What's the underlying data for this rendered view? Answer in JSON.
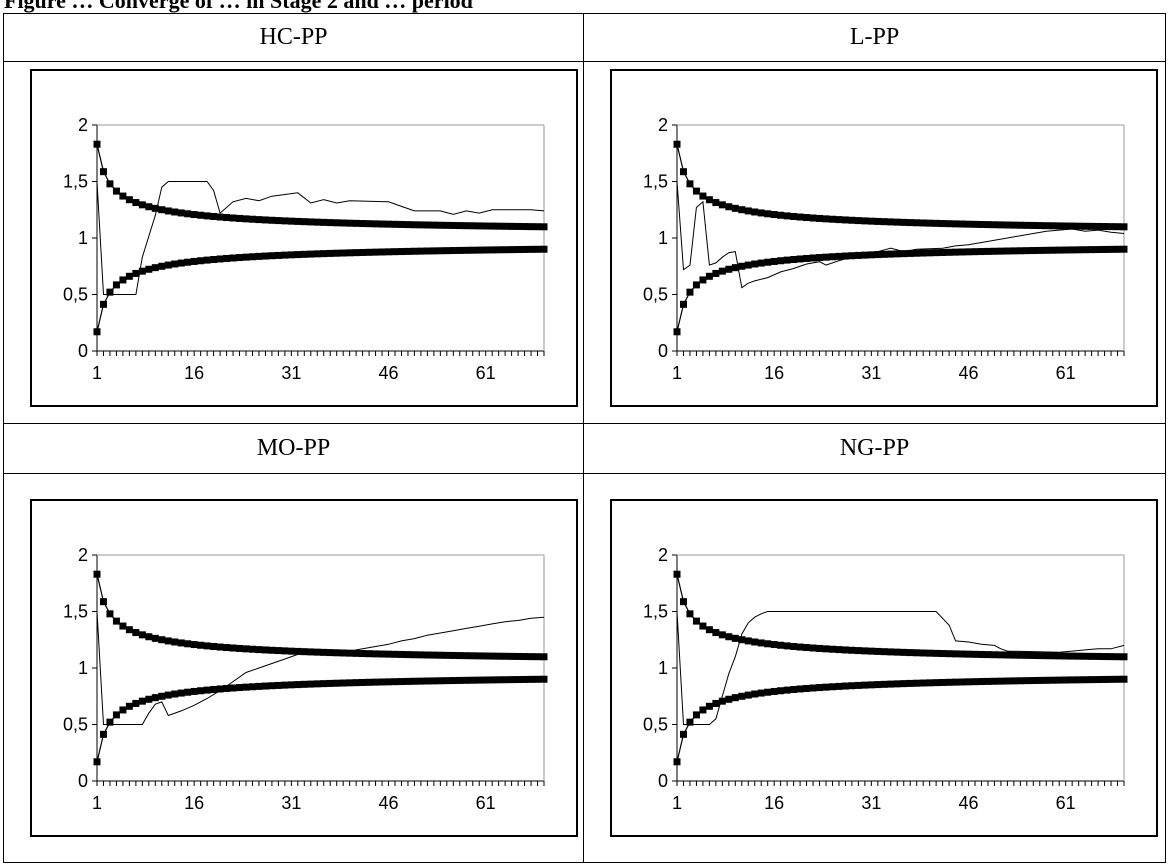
{
  "caption": "Figure … Converge of … in Stage 2 and … period",
  "panels": [
    "HC-PP",
    "L-PP",
    "MO-PP",
    "NG-PP"
  ],
  "chart_data": [
    {
      "type": "line",
      "title": "HC-PP",
      "xlabel": "",
      "ylabel": "",
      "xlim": [
        1,
        70
      ],
      "ylim": [
        0,
        2
      ],
      "x_ticks": [
        1,
        16,
        31,
        46,
        61
      ],
      "y_ticks": [
        "0",
        "0,5",
        "1",
        "1,5",
        "2"
      ],
      "grid": false,
      "series": [
        {
          "marker": "square",
          "shape": "upper_bound",
          "values": "1 + 0.83/sqrt(n) for n = 1..70"
        },
        {
          "marker": "square",
          "shape": "lower_bound",
          "values": "1 - 0.83/sqrt(n) for n = 1..70"
        },
        {
          "marker": "none",
          "points": [
            [
              1,
              1.5
            ],
            [
              2,
              0.5
            ],
            [
              3,
              0.5
            ],
            [
              5,
              0.5
            ],
            [
              7,
              0.5
            ],
            [
              8,
              0.83
            ],
            [
              10,
              1.2
            ],
            [
              11,
              1.45
            ],
            [
              12,
              1.5
            ],
            [
              18,
              1.5
            ],
            [
              19,
              1.42
            ],
            [
              20,
              1.22
            ],
            [
              22,
              1.32
            ],
            [
              24,
              1.35
            ],
            [
              26,
              1.33
            ],
            [
              28,
              1.37
            ],
            [
              32,
              1.4
            ],
            [
              34,
              1.31
            ],
            [
              36,
              1.34
            ],
            [
              38,
              1.31
            ],
            [
              40,
              1.33
            ],
            [
              46,
              1.32
            ],
            [
              48,
              1.28
            ],
            [
              50,
              1.24
            ],
            [
              54,
              1.24
            ],
            [
              56,
              1.21
            ],
            [
              58,
              1.24
            ],
            [
              60,
              1.22
            ],
            [
              62,
              1.25
            ],
            [
              68,
              1.25
            ],
            [
              70,
              1.24
            ]
          ]
        }
      ]
    },
    {
      "type": "line",
      "title": "L-PP",
      "xlabel": "",
      "ylabel": "",
      "xlim": [
        1,
        70
      ],
      "ylim": [
        0,
        2
      ],
      "x_ticks": [
        1,
        16,
        31,
        46,
        61
      ],
      "y_ticks": [
        "0",
        "0,5",
        "1",
        "1,5",
        "2"
      ],
      "grid": false,
      "series": [
        {
          "marker": "square",
          "shape": "upper_bound",
          "values": "1 + 0.83/sqrt(n) for n = 1..70"
        },
        {
          "marker": "square",
          "shape": "lower_bound",
          "values": "1 - 0.83/sqrt(n) for n = 1..70"
        },
        {
          "marker": "none",
          "points": [
            [
              1,
              1.5
            ],
            [
              2,
              0.72
            ],
            [
              3,
              0.76
            ],
            [
              4,
              1.27
            ],
            [
              5,
              1.32
            ],
            [
              6,
              0.76
            ],
            [
              7,
              0.78
            ],
            [
              8,
              0.83
            ],
            [
              9,
              0.87
            ],
            [
              10,
              0.88
            ],
            [
              11,
              0.56
            ],
            [
              12,
              0.6
            ],
            [
              13,
              0.62
            ],
            [
              15,
              0.65
            ],
            [
              17,
              0.7
            ],
            [
              19,
              0.73
            ],
            [
              21,
              0.77
            ],
            [
              23,
              0.79
            ],
            [
              24,
              0.76
            ],
            [
              26,
              0.8
            ],
            [
              28,
              0.83
            ],
            [
              30,
              0.85
            ],
            [
              32,
              0.88
            ],
            [
              34,
              0.91
            ],
            [
              36,
              0.88
            ],
            [
              38,
              0.9
            ],
            [
              42,
              0.91
            ],
            [
              44,
              0.93
            ],
            [
              46,
              0.94
            ],
            [
              48,
              0.96
            ],
            [
              50,
              0.98
            ],
            [
              52,
              1.0
            ],
            [
              54,
              1.02
            ],
            [
              56,
              1.04
            ],
            [
              58,
              1.06
            ],
            [
              60,
              1.07
            ],
            [
              62,
              1.08
            ],
            [
              64,
              1.06
            ],
            [
              66,
              1.07
            ],
            [
              68,
              1.05
            ],
            [
              70,
              1.04
            ]
          ]
        }
      ]
    },
    {
      "type": "line",
      "title": "MO-PP",
      "xlabel": "",
      "ylabel": "",
      "xlim": [
        1,
        70
      ],
      "ylim": [
        0,
        2
      ],
      "x_ticks": [
        1,
        16,
        31,
        46,
        61
      ],
      "y_ticks": [
        "0",
        "0,5",
        "1",
        "1,5",
        "2"
      ],
      "grid": false,
      "series": [
        {
          "marker": "square",
          "shape": "upper_bound",
          "values": "1 + 0.83/sqrt(n) for n = 1..70"
        },
        {
          "marker": "square",
          "shape": "lower_bound",
          "values": "1 - 0.83/sqrt(n) for n = 1..70"
        },
        {
          "marker": "none",
          "points": [
            [
              1,
              1.5
            ],
            [
              2,
              0.5
            ],
            [
              3,
              0.5
            ],
            [
              8,
              0.5
            ],
            [
              9,
              0.6
            ],
            [
              10,
              0.68
            ],
            [
              11,
              0.7
            ],
            [
              12,
              0.58
            ],
            [
              14,
              0.62
            ],
            [
              16,
              0.67
            ],
            [
              18,
              0.73
            ],
            [
              20,
              0.8
            ],
            [
              22,
              0.88
            ],
            [
              24,
              0.96
            ],
            [
              26,
              1.0
            ],
            [
              28,
              1.04
            ],
            [
              30,
              1.08
            ],
            [
              32,
              1.12
            ],
            [
              34,
              1.15
            ],
            [
              36,
              1.16
            ],
            [
              38,
              1.14
            ],
            [
              40,
              1.15
            ],
            [
              42,
              1.17
            ],
            [
              44,
              1.19
            ],
            [
              46,
              1.21
            ],
            [
              48,
              1.24
            ],
            [
              50,
              1.26
            ],
            [
              52,
              1.29
            ],
            [
              54,
              1.31
            ],
            [
              56,
              1.33
            ],
            [
              58,
              1.35
            ],
            [
              60,
              1.37
            ],
            [
              62,
              1.39
            ],
            [
              64,
              1.41
            ],
            [
              66,
              1.42
            ],
            [
              68,
              1.44
            ],
            [
              70,
              1.45
            ]
          ]
        }
      ]
    },
    {
      "type": "line",
      "title": "NG-PP",
      "xlabel": "",
      "ylabel": "",
      "xlim": [
        1,
        70
      ],
      "ylim": [
        0,
        2
      ],
      "x_ticks": [
        1,
        16,
        31,
        46,
        61
      ],
      "y_ticks": [
        "0",
        "0,5",
        "1",
        "1,5",
        "2"
      ],
      "grid": false,
      "series": [
        {
          "marker": "square",
          "shape": "upper_bound",
          "values": "1 + 0.83/sqrt(n) for n = 1..70"
        },
        {
          "marker": "square",
          "shape": "lower_bound",
          "values": "1 - 0.83/sqrt(n) for n = 1..70"
        },
        {
          "marker": "none",
          "points": [
            [
              1,
              1.5
            ],
            [
              2,
              0.5
            ],
            [
              3,
              0.5
            ],
            [
              6,
              0.5
            ],
            [
              7,
              0.55
            ],
            [
              8,
              0.75
            ],
            [
              9,
              0.95
            ],
            [
              10,
              1.1
            ],
            [
              11,
              1.3
            ],
            [
              12,
              1.4
            ],
            [
              13,
              1.45
            ],
            [
              14,
              1.48
            ],
            [
              15,
              1.5
            ],
            [
              41,
              1.5
            ],
            [
              42,
              1.44
            ],
            [
              43,
              1.38
            ],
            [
              44,
              1.24
            ],
            [
              46,
              1.23
            ],
            [
              48,
              1.21
            ],
            [
              50,
              1.2
            ],
            [
              51,
              1.17
            ],
            [
              52,
              1.15
            ],
            [
              60,
              1.14
            ],
            [
              62,
              1.15
            ],
            [
              64,
              1.16
            ],
            [
              66,
              1.17
            ],
            [
              68,
              1.17
            ],
            [
              70,
              1.2
            ]
          ]
        }
      ]
    }
  ]
}
